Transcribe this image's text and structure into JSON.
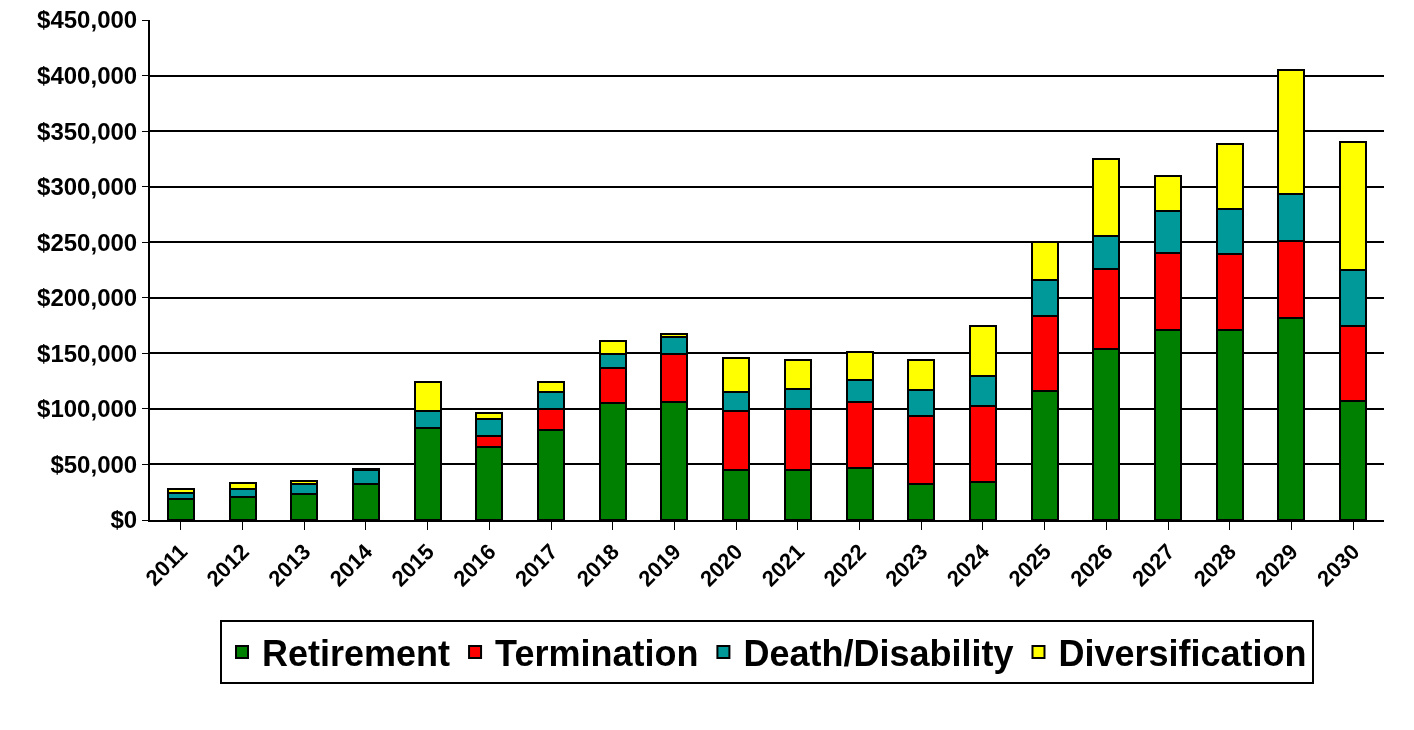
{
  "chart_data": {
    "type": "bar",
    "stacked": true,
    "categories": [
      "2011",
      "2012",
      "2013",
      "2014",
      "2015",
      "2016",
      "2017",
      "2018",
      "2019",
      "2020",
      "2021",
      "2022",
      "2023",
      "2024",
      "2025",
      "2026",
      "2027",
      "2028",
      "2029",
      "2030"
    ],
    "series": [
      {
        "name": "Retirement",
        "color": "#008000",
        "values": [
          19000,
          21000,
          23000,
          32000,
          83000,
          66000,
          81000,
          105000,
          106000,
          45000,
          45000,
          47000,
          32000,
          34000,
          116000,
          154000,
          171000,
          171000,
          182000,
          107000
        ]
      },
      {
        "name": "Termination",
        "color": "#ff0000",
        "values": [
          null,
          null,
          null,
          null,
          null,
          10000,
          19000,
          32000,
          43000,
          53000,
          55000,
          59000,
          62000,
          69000,
          68000,
          72000,
          69000,
          68000,
          69000,
          68000
        ]
      },
      {
        "name": "Death/Disability",
        "color": "#009999",
        "values": [
          5000,
          7000,
          9000,
          13000,
          15000,
          15000,
          15000,
          12000,
          16000,
          17000,
          18000,
          20000,
          23000,
          27000,
          32000,
          30000,
          38000,
          41000,
          42000,
          50000
        ]
      },
      {
        "name": "Diversification",
        "color": "#ffff00",
        "values": [
          4000,
          5000,
          3000,
          1000,
          26000,
          5000,
          9000,
          12000,
          2000,
          31000,
          26000,
          25000,
          27000,
          45000,
          34000,
          69000,
          32000,
          58000,
          112000,
          115000
        ]
      }
    ],
    "ylim": [
      0,
      450000
    ],
    "yticks": [
      {
        "value": 0,
        "label": "$0"
      },
      {
        "value": 50000,
        "label": "$50,000"
      },
      {
        "value": 100000,
        "label": "$100,000"
      },
      {
        "value": 150000,
        "label": "$150,000"
      },
      {
        "value": 200000,
        "label": "$200,000"
      },
      {
        "value": 250000,
        "label": "$250,000"
      },
      {
        "value": 300000,
        "label": "$300,000"
      },
      {
        "value": 350000,
        "label": "$350,000"
      },
      {
        "value": 400000,
        "label": "$400,000"
      },
      {
        "value": 450000,
        "label": "$450,000"
      }
    ],
    "grid": "y",
    "legend": "bottom"
  }
}
